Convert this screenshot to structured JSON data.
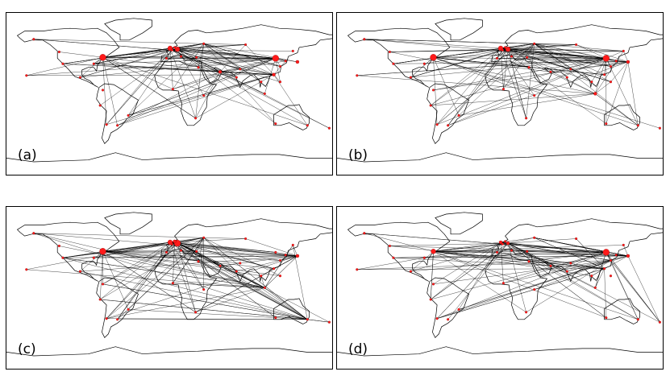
{
  "panels": [
    {
      "id": "a",
      "label": "(a)"
    },
    {
      "id": "b",
      "label": "(b)"
    },
    {
      "id": "c",
      "label": "(c)"
    },
    {
      "id": "d",
      "label": "(d)"
    }
  ],
  "colors": {
    "node": "#ff1a1a",
    "edge": "#000000",
    "coast": "#000000",
    "border": "#666666"
  }
}
